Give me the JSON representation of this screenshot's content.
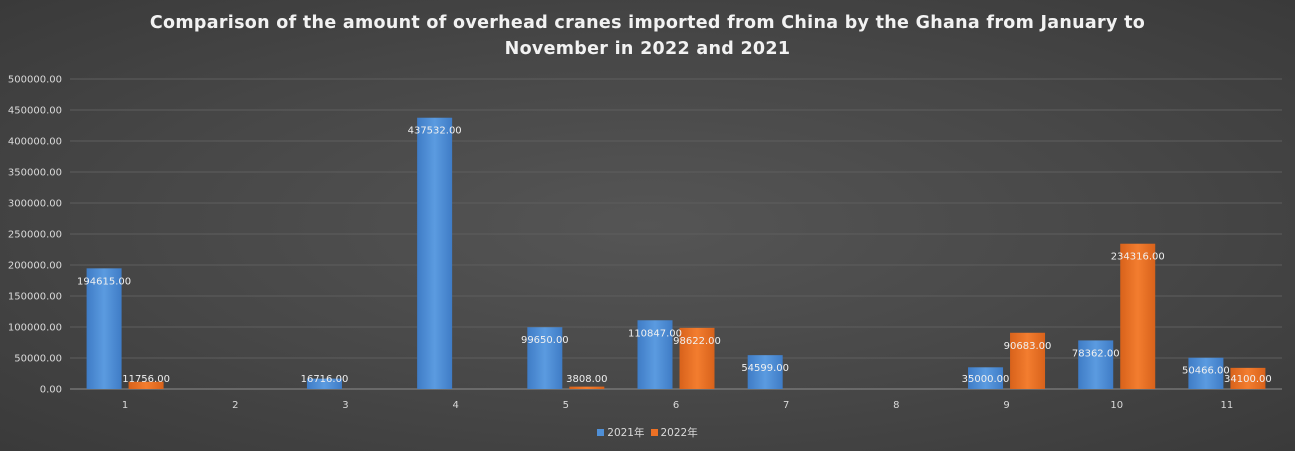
{
  "chart_data": {
    "type": "bar",
    "title_lines": [
      "Comparison of the amount of overhead cranes imported from China by the Ghana from January to",
      "November in 2022 and 2021"
    ],
    "categories": [
      "1",
      "2",
      "3",
      "4",
      "5",
      "6",
      "7",
      "8",
      "9",
      "10",
      "11"
    ],
    "series": [
      {
        "name": "2021年",
        "color": "#4f8fd6",
        "values": [
          194615,
          null,
          16716,
          437532,
          99650,
          110847,
          54599,
          null,
          35000,
          78362,
          50466
        ],
        "labels": [
          "194615.00",
          "",
          "16716.00",
          "437532.00",
          "99650.00",
          "110847.00",
          "54599.00",
          "",
          "35000.00",
          "78362.00",
          "50466.00"
        ]
      },
      {
        "name": "2022年",
        "color": "#ed7125",
        "values": [
          11756,
          null,
          null,
          null,
          3808,
          98622,
          null,
          null,
          90683,
          234316,
          34100
        ],
        "labels": [
          "11756.00",
          "",
          "",
          "",
          "3808.00",
          "98622.00",
          "",
          "",
          "90683.00",
          "234316.00",
          "34100.00"
        ]
      }
    ],
    "ylim": [
      0,
      500000
    ],
    "yticks": [
      "0.00",
      "50000.00",
      "100000.00",
      "150000.00",
      "200000.00",
      "250000.00",
      "300000.00",
      "350000.00",
      "400000.00",
      "450000.00",
      "500000.00"
    ],
    "grid": true,
    "legend_position": "bottom"
  }
}
